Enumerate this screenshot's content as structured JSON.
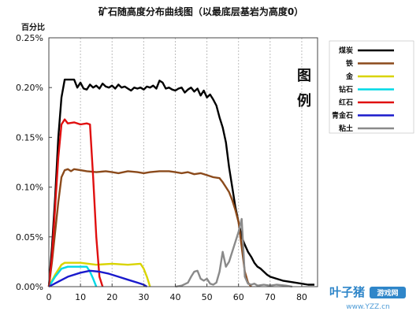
{
  "chart_data": {
    "type": "line",
    "title": "矿石随高度分布曲线图（以最底层基岩为高度0）",
    "ylabel": "百分比",
    "xlim": [
      0,
      85
    ],
    "ylim": [
      0,
      0.25
    ],
    "x_ticks": [
      0,
      10,
      20,
      30,
      40,
      50,
      60,
      70,
      80
    ],
    "y_ticks": [
      {
        "value": 0,
        "label": "0.00%"
      },
      {
        "value": 0.05,
        "label": "0.05%"
      },
      {
        "value": 0.1,
        "label": "0.10%"
      },
      {
        "value": 0.15,
        "label": "0.15%"
      },
      {
        "value": 0.2,
        "label": "0.20%"
      },
      {
        "value": 0.25,
        "label": "0.25%"
      }
    ],
    "grid": "vertical-dashed",
    "legend_title": [
      "图",
      "例"
    ],
    "legend_position": "top-right",
    "series": [
      {
        "name": "煤炭",
        "color": "#000000",
        "points": [
          [
            0,
            0
          ],
          [
            1,
            0.04
          ],
          [
            2,
            0.09
          ],
          [
            3,
            0.15
          ],
          [
            4,
            0.19
          ],
          [
            5,
            0.208
          ],
          [
            7,
            0.208
          ],
          [
            8,
            0.208
          ],
          [
            9,
            0.2
          ],
          [
            10,
            0.205
          ],
          [
            11,
            0.199
          ],
          [
            12,
            0.198
          ],
          [
            13,
            0.203
          ],
          [
            14,
            0.2
          ],
          [
            15,
            0.202
          ],
          [
            16,
            0.199
          ],
          [
            17,
            0.204
          ],
          [
            18,
            0.201
          ],
          [
            19,
            0.2
          ],
          [
            20,
            0.202
          ],
          [
            21,
            0.199
          ],
          [
            22,
            0.203
          ],
          [
            23,
            0.2
          ],
          [
            24,
            0.201
          ],
          [
            25,
            0.199
          ],
          [
            26,
            0.197
          ],
          [
            27,
            0.2
          ],
          [
            28,
            0.199
          ],
          [
            29,
            0.2
          ],
          [
            30,
            0.198
          ],
          [
            31,
            0.201
          ],
          [
            32,
            0.2
          ],
          [
            33,
            0.202
          ],
          [
            34,
            0.199
          ],
          [
            35,
            0.207
          ],
          [
            36,
            0.205
          ],
          [
            37,
            0.199
          ],
          [
            38,
            0.2
          ],
          [
            39,
            0.198
          ],
          [
            40,
            0.197
          ],
          [
            41,
            0.199
          ],
          [
            42,
            0.2
          ],
          [
            43,
            0.195
          ],
          [
            44,
            0.198
          ],
          [
            45,
            0.2
          ],
          [
            46,
            0.196
          ],
          [
            47,
            0.199
          ],
          [
            48,
            0.192
          ],
          [
            49,
            0.197
          ],
          [
            50,
            0.19
          ],
          [
            51,
            0.193
          ],
          [
            52,
            0.188
          ],
          [
            53,
            0.182
          ],
          [
            54,
            0.17
          ],
          [
            55,
            0.16
          ],
          [
            56,
            0.145
          ],
          [
            57,
            0.12
          ],
          [
            58,
            0.1
          ],
          [
            59,
            0.08
          ],
          [
            60,
            0.065
          ],
          [
            61,
            0.05
          ],
          [
            62,
            0.042
          ],
          [
            63,
            0.035
          ],
          [
            64,
            0.03
          ],
          [
            65,
            0.024
          ],
          [
            66,
            0.02
          ],
          [
            67,
            0.018
          ],
          [
            68,
            0.015
          ],
          [
            69,
            0.012
          ],
          [
            70,
            0.01
          ],
          [
            72,
            0.008
          ],
          [
            74,
            0.006
          ],
          [
            76,
            0.005
          ],
          [
            78,
            0.004
          ],
          [
            80,
            0.003
          ],
          [
            82,
            0.002
          ],
          [
            84,
            0.002
          ]
        ]
      },
      {
        "name": "铁",
        "color": "#8b4a1b",
        "points": [
          [
            0,
            0
          ],
          [
            1,
            0.025
          ],
          [
            2,
            0.055
          ],
          [
            3,
            0.085
          ],
          [
            4,
            0.11
          ],
          [
            5,
            0.117
          ],
          [
            6,
            0.118
          ],
          [
            7,
            0.116
          ],
          [
            8,
            0.118
          ],
          [
            10,
            0.117
          ],
          [
            12,
            0.116
          ],
          [
            15,
            0.115
          ],
          [
            18,
            0.116
          ],
          [
            20,
            0.115
          ],
          [
            22,
            0.114
          ],
          [
            25,
            0.116
          ],
          [
            28,
            0.115
          ],
          [
            30,
            0.114
          ],
          [
            32,
            0.115
          ],
          [
            35,
            0.116
          ],
          [
            38,
            0.116
          ],
          [
            40,
            0.115
          ],
          [
            42,
            0.114
          ],
          [
            44,
            0.115
          ],
          [
            46,
            0.113
          ],
          [
            48,
            0.114
          ],
          [
            50,
            0.112
          ],
          [
            52,
            0.11
          ],
          [
            54,
            0.109
          ],
          [
            55,
            0.105
          ],
          [
            56,
            0.1
          ],
          [
            57,
            0.095
          ],
          [
            58,
            0.087
          ],
          [
            59,
            0.077
          ],
          [
            60,
            0.065
          ],
          [
            61,
            0.04
          ],
          [
            62,
            0.015
          ],
          [
            63,
            0.004
          ],
          [
            64,
            0
          ]
        ]
      },
      {
        "name": "金",
        "color": "#d9d400",
        "points": [
          [
            0,
            0
          ],
          [
            2,
            0.012
          ],
          [
            4,
            0.022
          ],
          [
            5,
            0.024
          ],
          [
            10,
            0.024
          ],
          [
            15,
            0.022
          ],
          [
            20,
            0.023
          ],
          [
            25,
            0.022
          ],
          [
            29,
            0.023
          ],
          [
            30,
            0.018
          ],
          [
            31,
            0.01
          ],
          [
            32,
            0
          ]
        ]
      },
      {
        "name": "钻石",
        "color": "#00d9e6",
        "points": [
          [
            0,
            0
          ],
          [
            2,
            0.01
          ],
          [
            4,
            0.018
          ],
          [
            6,
            0.02
          ],
          [
            12,
            0.02
          ],
          [
            13,
            0.015
          ],
          [
            14,
            0.008
          ],
          [
            15,
            0
          ]
        ]
      },
      {
        "name": "红石",
        "color": "#e01010",
        "points": [
          [
            0,
            0
          ],
          [
            1,
            0.03
          ],
          [
            2,
            0.08
          ],
          [
            3,
            0.13
          ],
          [
            4,
            0.163
          ],
          [
            5,
            0.168
          ],
          [
            6,
            0.164
          ],
          [
            8,
            0.165
          ],
          [
            10,
            0.163
          ],
          [
            12,
            0.164
          ],
          [
            13,
            0.163
          ],
          [
            14,
            0.11
          ],
          [
            15,
            0.05
          ],
          [
            16,
            0.01
          ],
          [
            17,
            0
          ]
        ]
      },
      {
        "name": "青金石",
        "color": "#1a1acc",
        "points": [
          [
            0,
            0
          ],
          [
            3,
            0.005
          ],
          [
            6,
            0.01
          ],
          [
            10,
            0.014
          ],
          [
            13,
            0.016
          ],
          [
            16,
            0.015
          ],
          [
            19,
            0.013
          ],
          [
            22,
            0.01
          ],
          [
            25,
            0.007
          ],
          [
            28,
            0.004
          ],
          [
            30,
            0.002
          ],
          [
            31,
            0
          ]
        ]
      },
      {
        "name": "粘土",
        "color": "#8a8a8a",
        "points": [
          [
            40,
            0
          ],
          [
            42,
            0.001
          ],
          [
            44,
            0.004
          ],
          [
            45,
            0.01
          ],
          [
            46,
            0.015
          ],
          [
            47,
            0.016
          ],
          [
            48,
            0.008
          ],
          [
            49,
            0.006
          ],
          [
            50,
            0.008
          ],
          [
            51,
            0.003
          ],
          [
            52,
            0.002
          ],
          [
            53,
            0.004
          ],
          [
            54,
            0.015
          ],
          [
            55,
            0.035
          ],
          [
            56,
            0.02
          ],
          [
            57,
            0.025
          ],
          [
            58,
            0.035
          ],
          [
            59,
            0.045
          ],
          [
            60,
            0.055
          ],
          [
            61,
            0.068
          ],
          [
            61.5,
            0.04
          ],
          [
            62,
            0.01
          ],
          [
            63,
            0.003
          ],
          [
            64,
            0.002
          ],
          [
            65,
            0.003
          ],
          [
            66,
            0.001
          ],
          [
            68,
            0.002
          ],
          [
            70,
            0.001
          ],
          [
            72,
            0.002
          ],
          [
            75,
            0.001
          ],
          [
            77,
            0
          ]
        ]
      }
    ]
  },
  "watermark": {
    "brand": "叶子猪",
    "sub": "游戏网",
    "url": "www.YZZ.cn"
  }
}
